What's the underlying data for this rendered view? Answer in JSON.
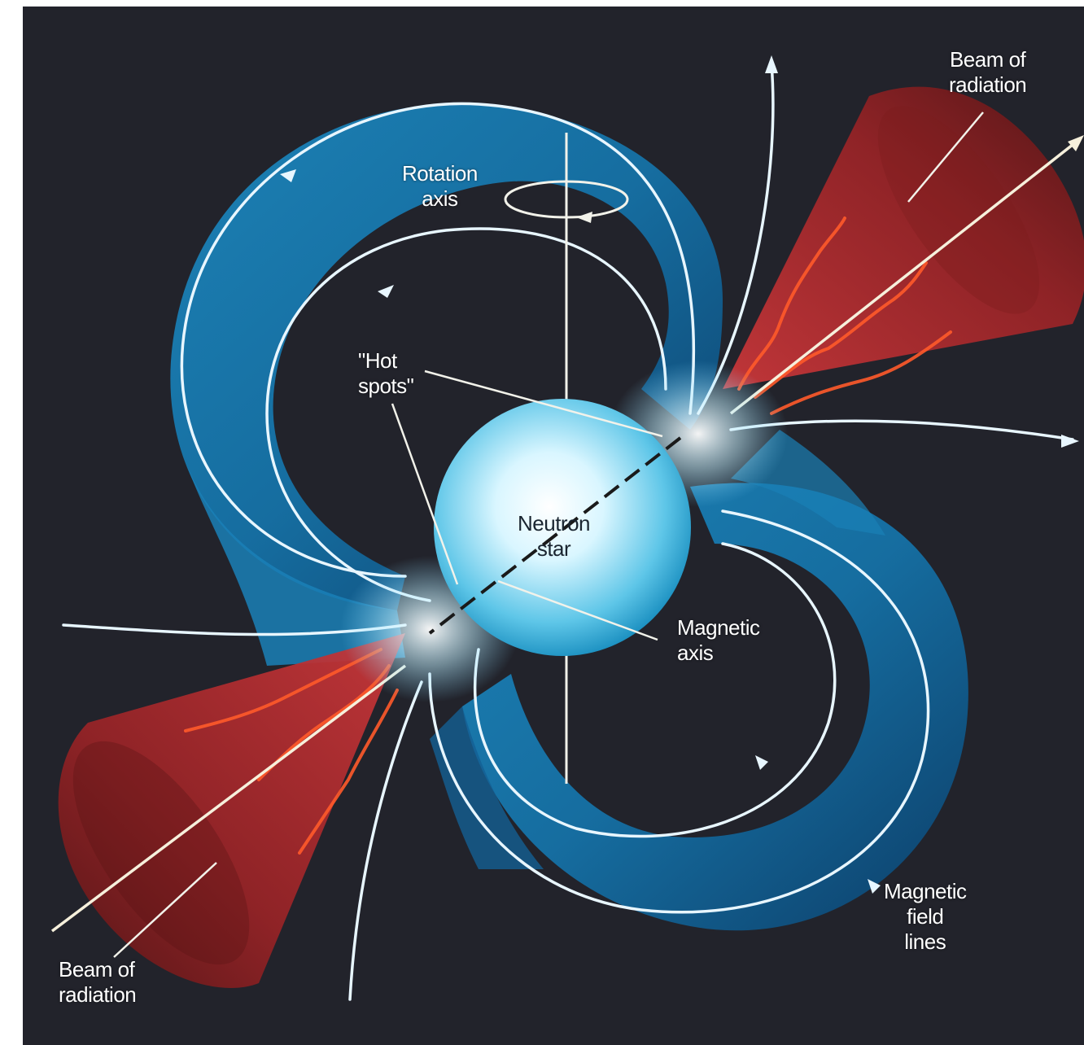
{
  "labels": {
    "beam_top": [
      "Beam of",
      "radiation"
    ],
    "rotation_axis": [
      "Rotation",
      "axis"
    ],
    "hot_spots": [
      "\"Hot",
      "spots\""
    ],
    "neutron_star": [
      "Neutron",
      "star"
    ],
    "magnetic_axis": [
      "Magnetic",
      "axis"
    ],
    "magnetic_field_lines": [
      "Magnetic",
      "field",
      "lines"
    ],
    "beam_bottom": [
      "Beam of",
      "radiation"
    ]
  },
  "colors": {
    "background": "#22232b",
    "field_band": "#1f8fc4",
    "field_band_dark": "#0e3e66",
    "field_line": "#e8f6ff",
    "beam": "#b32b2b",
    "beam_dark": "#5a1414",
    "star": "#bfefff"
  }
}
